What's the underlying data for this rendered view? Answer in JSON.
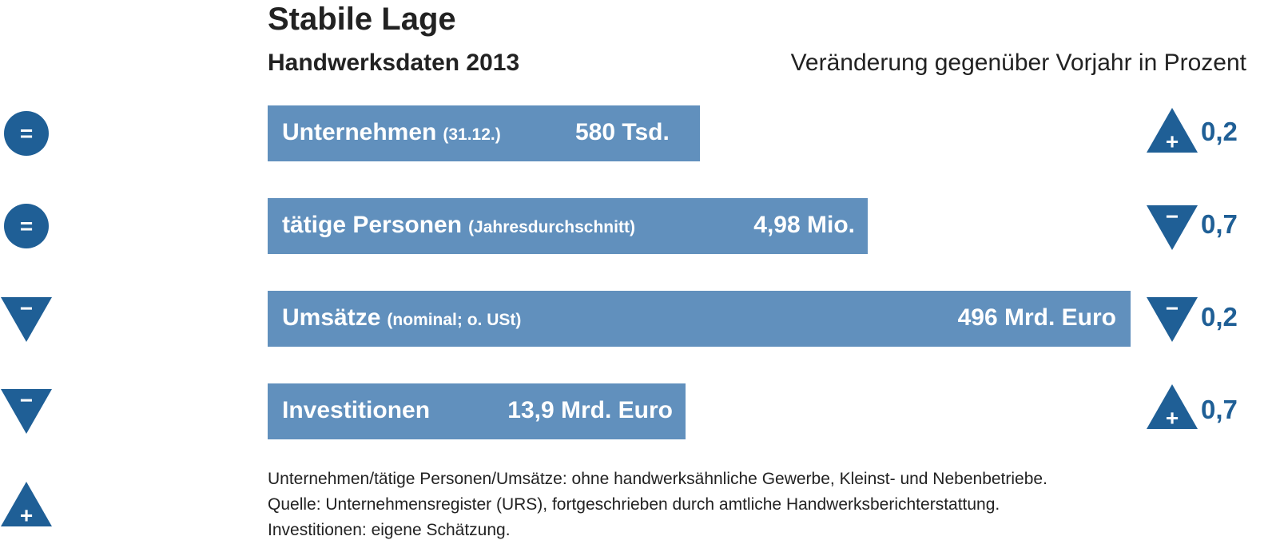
{
  "title": "Stabile Lage",
  "subtitle": "Handwerksdaten 2013",
  "header_right": "Veränderung gegenüber Vorjahr in Prozent",
  "left_icons": [
    "=",
    "=",
    "−",
    "−",
    "+"
  ],
  "rows": [
    {
      "label": "Unternehmen",
      "note": "(31.12.)",
      "value": "580 Tsd.",
      "change_symbol": "+",
      "change": "0,2"
    },
    {
      "label": "tätige Personen",
      "note": "(Jahresdurchschnitt)",
      "value": "4,98 Mio.",
      "change_symbol": "−",
      "change": "0,7"
    },
    {
      "label": "Umsätze",
      "note": "(nominal; o. USt)",
      "value": "496 Mrd. Euro",
      "change_symbol": "−",
      "change": "0,2"
    },
    {
      "label": "Investitionen",
      "value": "13,9 Mrd. Euro",
      "change_symbol": "+",
      "change": "0,7"
    }
  ],
  "footnotes": [
    "Unternehmen/tätige Personen/Umsätze: ohne handwerksähnliche Gewerbe, Kleinst- und Nebenbetriebe.",
    "Quelle: Unternehmensregister (URS), fortgeschrieben durch amtliche Handwerksberichterstattung.",
    "Investitionen: eigene Schätzung."
  ]
}
